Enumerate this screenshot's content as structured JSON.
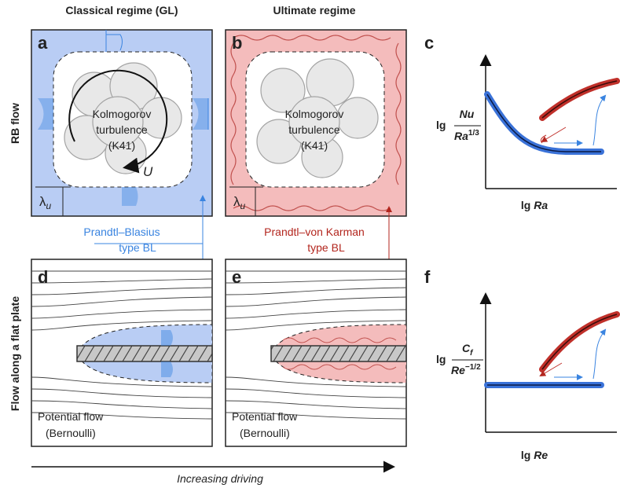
{
  "headers": {
    "classical": "Classical regime (GL)",
    "ultimate": "Ultimate regime"
  },
  "row_labels": {
    "rb": "RB flow",
    "plate": "Flow along a flat plate"
  },
  "panels": {
    "a": {
      "letter": "a",
      "core": [
        "Kolmogorov",
        "turbulence",
        "(K41)"
      ],
      "velocity": "U",
      "bl_symbol": "λ",
      "bl_subscript": "u"
    },
    "b": {
      "letter": "b",
      "core": [
        "Kolmogorov",
        "turbulence",
        "(K41)"
      ],
      "bl_symbol": "λ",
      "bl_subscript": "u"
    },
    "c": {
      "letter": "c",
      "y_label": {
        "prefix": "lg",
        "numerator": "Nu",
        "denominator": "Ra",
        "exponent": "1/3"
      },
      "x_label": {
        "prefix": "lg",
        "variable": "Ra"
      }
    },
    "d": {
      "letter": "d",
      "potential_flow": [
        "Potential flow",
        "(Bernoulli)"
      ]
    },
    "e": {
      "letter": "e",
      "potential_flow": [
        "Potential flow",
        "(Bernoulli)"
      ]
    },
    "f": {
      "letter": "f",
      "y_label": {
        "prefix": "lg",
        "numerator": "C",
        "numerator_subscript": "f",
        "denominator": "Re",
        "exponent": "−1/2"
      },
      "x_label": {
        "prefix": "lg",
        "variable": "Re"
      }
    }
  },
  "annotations": {
    "blasius": [
      "Prandtl–Blasius",
      "type BL"
    ],
    "von_karman": [
      "Prandtl–von Karman",
      "type BL"
    ]
  },
  "footer": "Increasing driving"
}
